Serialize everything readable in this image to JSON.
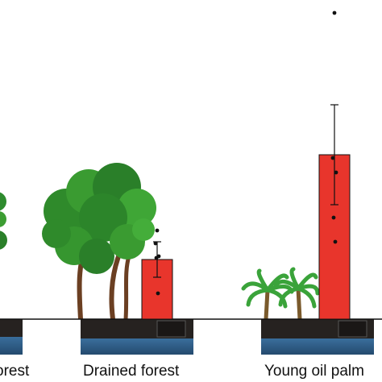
{
  "chart_data": {
    "type": "bar",
    "title": "",
    "xlabel": "",
    "ylabel": "",
    "ylim": [
      0,
      10
    ],
    "grid": false,
    "categories": [
      "Primary forest",
      "Drained forest",
      "Young oil palm"
    ],
    "visible_category_text": [
      "orest",
      "Drained forest",
      "Young oil palm"
    ],
    "series": [
      {
        "color": "#e8352c",
        "values": [
          null,
          1.85,
          5.1
        ],
        "error": [
          null,
          0.55,
          1.55
        ],
        "points": [
          [],
          [
            2.75,
            2.35,
            1.95,
            1.9,
            0.8
          ],
          [
            9.5,
            5.0,
            4.55,
            3.15,
            2.4
          ]
        ]
      }
    ]
  },
  "colors": {
    "bar": "#e8352c",
    "axis": "#111111",
    "soil": "#1f1c1a",
    "water": "#2f5f8a",
    "tree_foliage": "#2e8b2e",
    "palm_foliage": "#3aa33a"
  },
  "icons": [
    "broadleaf-tree-icon",
    "oil-palm-icon",
    "soil-block-icon"
  ]
}
